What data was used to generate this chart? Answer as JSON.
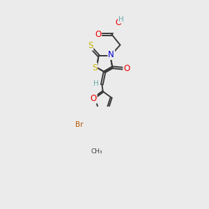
{
  "bg_color": "#ebebeb",
  "bond_color": "#3a3a3a",
  "atom_colors": {
    "S": "#c8b400",
    "N": "#0000cc",
    "O": "#ee0000",
    "Br": "#bb5500",
    "C": "#3a3a3a",
    "H": "#6aaaaa"
  },
  "font_size": 7.5,
  "lw": 1.4
}
